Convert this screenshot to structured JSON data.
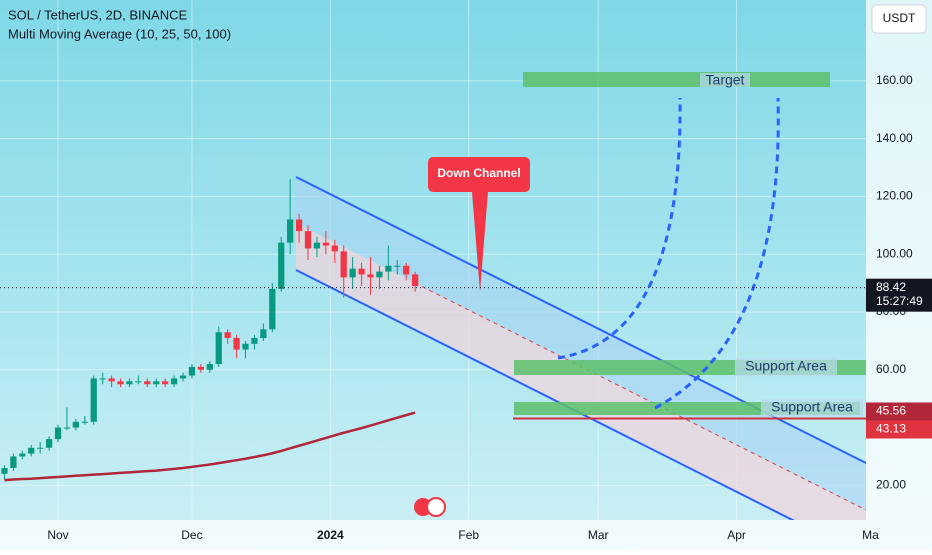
{
  "chart_data": {
    "type": "candlestick",
    "title": "SOL / TetherUS, 2D, BINANCE",
    "indicator": "Multi Moving Average (10, 25, 50, 100)",
    "currency": "USDT",
    "x": [
      19,
      21,
      23,
      25,
      27,
      29,
      31,
      33,
      35,
      37,
      39,
      41,
      43,
      45,
      47,
      49,
      51,
      53,
      55,
      57,
      59,
      61,
      63,
      65,
      67,
      69,
      71,
      73,
      75,
      77,
      79,
      81,
      83,
      85,
      87,
      89,
      91,
      93,
      95,
      97,
      99,
      101,
      103,
      105,
      107,
      109,
      111
    ],
    "open": [
      24,
      26,
      30,
      31,
      33,
      33,
      36,
      40,
      40,
      42,
      42,
      57,
      57,
      56,
      55,
      56,
      56,
      55,
      56,
      55,
      57,
      58,
      61,
      60,
      62,
      73,
      71,
      67,
      69,
      71,
      74,
      88,
      104,
      112,
      108,
      102,
      104,
      103,
      101,
      92,
      95,
      93,
      92,
      94,
      96,
      96,
      93
    ],
    "high": [
      27,
      31,
      32,
      34,
      35,
      37,
      41,
      47,
      43,
      44,
      58,
      59,
      58,
      57,
      57,
      58,
      57,
      57,
      57,
      58,
      59,
      62,
      62,
      63,
      75,
      74,
      72,
      70,
      72,
      76,
      90,
      106,
      126,
      114,
      110,
      106,
      108,
      105,
      103,
      99,
      97,
      99,
      96,
      103,
      98,
      97,
      94
    ],
    "low": [
      22,
      25,
      29,
      30,
      31,
      32,
      35,
      39,
      39,
      41,
      41,
      55,
      54,
      54,
      54,
      55,
      54,
      54,
      54,
      54,
      56,
      57,
      59,
      59,
      61,
      69,
      64,
      64,
      67,
      70,
      73,
      87,
      100,
      104,
      98,
      99,
      100,
      97,
      85,
      88,
      89,
      86,
      88,
      91,
      93,
      91,
      87
    ],
    "close": [
      26,
      30,
      31,
      33,
      33,
      36,
      40,
      40,
      42,
      42,
      57,
      57,
      56,
      55,
      56,
      56,
      55,
      56,
      55,
      57,
      58,
      61,
      60,
      62,
      73,
      71,
      67,
      69,
      71,
      74,
      88,
      104,
      112,
      108,
      102,
      104,
      103,
      101,
      92,
      95,
      93,
      92,
      94,
      96,
      96,
      93,
      89
    ],
    "up_color": "#089981",
    "down_color": "#f23645",
    "moving_average": {
      "color": "#b2263a",
      "values": [
        21.8,
        22,
        22.2,
        22.3,
        22.5,
        22.7,
        22.9,
        23.1,
        23.3,
        23.5,
        23.7,
        23.9,
        24.1,
        24.3,
        24.5,
        24.7,
        24.9,
        25.1,
        25.4,
        25.7,
        26,
        26.4,
        26.8,
        27.2,
        27.7,
        28.2,
        28.7,
        29.2,
        29.8,
        30.4,
        31.1,
        31.9,
        32.8,
        33.7,
        34.6,
        35.5,
        36.4,
        37.3,
        38.2,
        39,
        39.8,
        40.7,
        41.6,
        42.5,
        43.4,
        44.3,
        45.2
      ]
    },
    "xlim": [
      18,
      212
    ],
    "xticks": [
      {
        "value": 31,
        "label": "Nov"
      },
      {
        "value": 61,
        "label": "Dec"
      },
      {
        "value": 92,
        "label": "2024"
      },
      {
        "value": 123,
        "label": "Feb"
      },
      {
        "value": 152,
        "label": "Mar"
      },
      {
        "value": 183,
        "label": "Apr"
      },
      {
        "value": 213,
        "label": "Ma"
      }
    ],
    "ylim": [
      8,
      188
    ],
    "yticks": [
      {
        "value": 20,
        "label": "20.00"
      },
      {
        "value": 60,
        "label": "60.00"
      },
      {
        "value": 80,
        "label": "80.00"
      },
      {
        "value": 100,
        "label": "100.00"
      },
      {
        "value": 120,
        "label": "120.00"
      },
      {
        "value": 140,
        "label": "140.00"
      },
      {
        "value": 160,
        "label": "160.00"
      }
    ],
    "last_price": 88.42,
    "countdown": "15:27:49",
    "ma_price": 45.56,
    "horizontal_line": 43.13,
    "annotations": {
      "target": "Target",
      "support_1": "Support Area",
      "support_2": "Support Area",
      "callout": "Down Channel"
    }
  }
}
